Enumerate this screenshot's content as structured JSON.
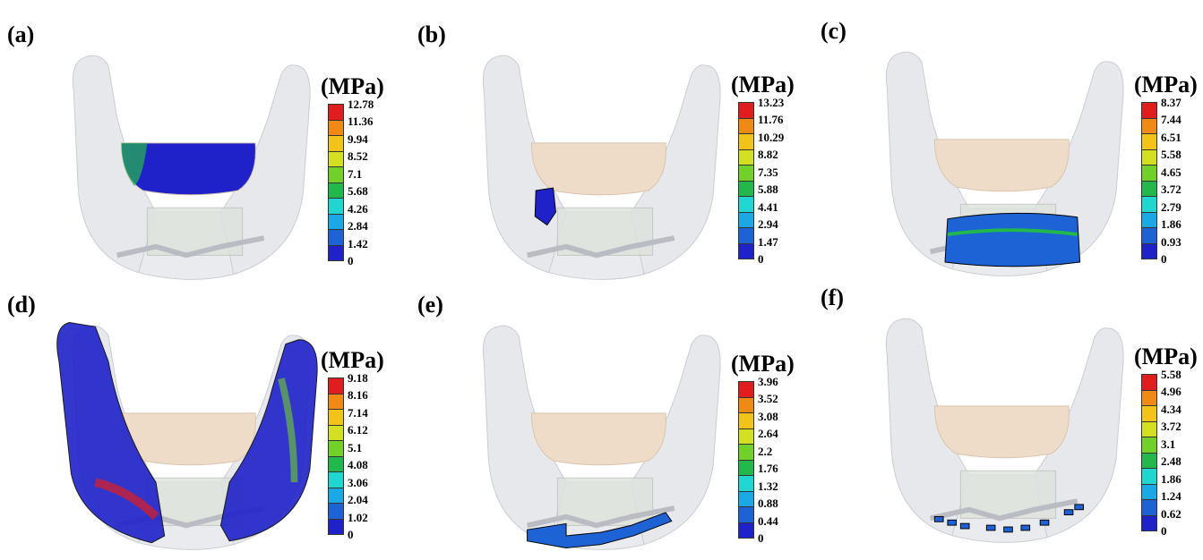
{
  "colormap": [
    "#e01e1e",
    "#f08a14",
    "#f2c41a",
    "#d2e021",
    "#71d02a",
    "#23b84b",
    "#20d6d0",
    "#1aa8e6",
    "#1d63d6",
    "#1f22c8"
  ],
  "panels": [
    {
      "id": "a",
      "label": "(a)",
      "unit": "(MPa)",
      "ticks": [
        "12.78",
        "11.36",
        "9.94",
        "8.52",
        "7.1",
        "5.68",
        "4.26",
        "2.84",
        "1.42",
        "0"
      ],
      "highlight": "maxilla-teeth"
    },
    {
      "id": "b",
      "label": "(b)",
      "unit": "(MPa)",
      "ticks": [
        "13.23",
        "11.76",
        "10.29",
        "8.82",
        "7.35",
        "5.88",
        "4.41",
        "2.94",
        "1.47",
        "0"
      ],
      "highlight": "condyle-fragment"
    },
    {
      "id": "c",
      "label": "(c)",
      "unit": "(MPa)",
      "ticks": [
        "8.37",
        "7.44",
        "6.51",
        "5.58",
        "4.65",
        "3.72",
        "2.79",
        "1.86",
        "0.93",
        "0"
      ],
      "highlight": "graft-block"
    },
    {
      "id": "d",
      "label": "(d)",
      "unit": "(MPa)",
      "ticks": [
        "9.18",
        "8.16",
        "7.14",
        "6.12",
        "5.1",
        "4.08",
        "3.06",
        "2.04",
        "1.02",
        "0"
      ],
      "highlight": "mandible-rami"
    },
    {
      "id": "e",
      "label": "(e)",
      "unit": "(MPa)",
      "ticks": [
        "3.96",
        "3.52",
        "3.08",
        "2.64",
        "2.2",
        "1.76",
        "1.32",
        "0.88",
        "0.44",
        "0"
      ],
      "highlight": "fixation-plate"
    },
    {
      "id": "f",
      "label": "(f)",
      "unit": "(MPa)",
      "ticks": [
        "5.58",
        "4.96",
        "4.34",
        "3.72",
        "3.1",
        "2.48",
        "1.86",
        "1.24",
        "0.62",
        "0"
      ],
      "highlight": "screws"
    }
  ]
}
